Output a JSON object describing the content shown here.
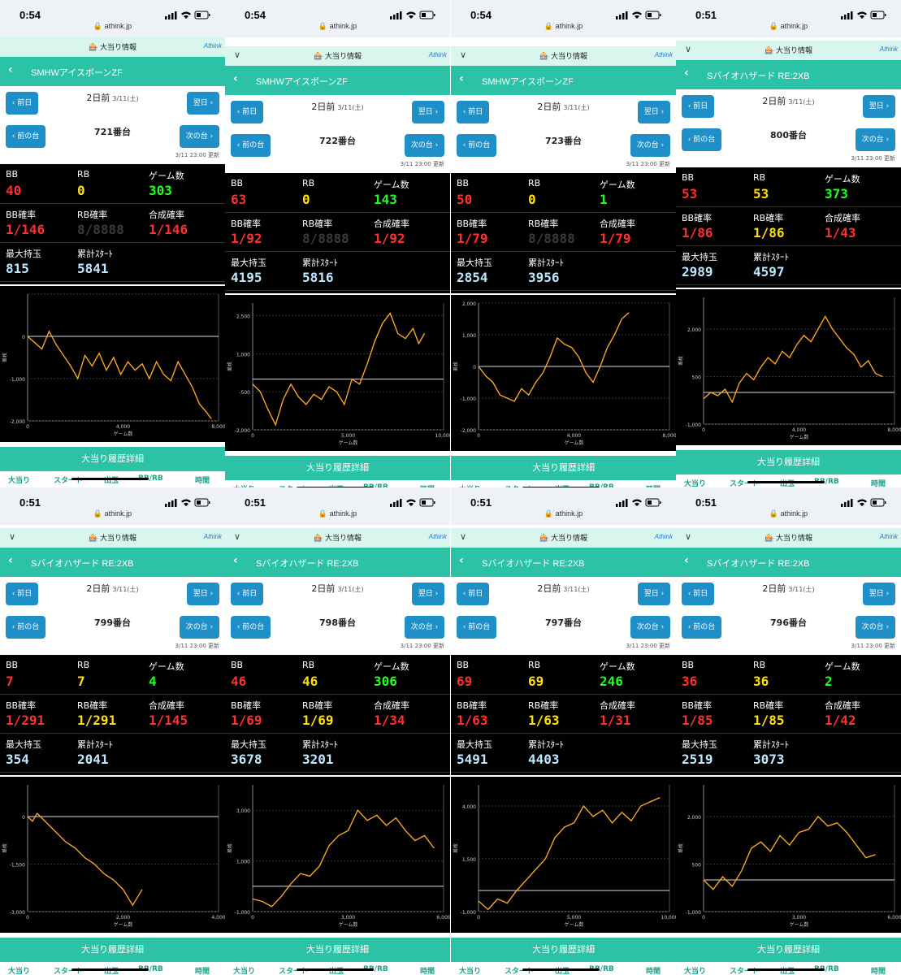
{
  "header": {
    "url": "athink.jp",
    "info_label": "大当り情報",
    "logo": "Athink",
    "prev_day": "‹ 前日",
    "next_day": "翌日 ›",
    "prev_machine": "‹ 前の台",
    "next_machine": "次の台 ›",
    "day_label": "2日前",
    "day_date": "3/11(土)",
    "updated": "3/11 23:00 更新",
    "history_label": "大当り履歴詳細"
  },
  "stat_labels": {
    "bb": "BB",
    "rb": "RB",
    "games": "ゲーム数",
    "bb_rate": "BB確率",
    "rb_rate": "RB確率",
    "combined_rate": "合成確率",
    "max_balls": "最大持玉",
    "total_starts": "累計ｽﾀｰﾄ"
  },
  "tabs": [
    "大当り",
    "スタート",
    "出玉",
    "BB/RB",
    "時間"
  ],
  "axis_labels": {
    "x": "ゲーム数",
    "y": "差枚"
  },
  "panels": [
    {
      "time": "0:54",
      "title": "SMHWアイスボーンZF",
      "machine": "721番台",
      "bb": "40",
      "rb": "0",
      "games": "303",
      "bb_rate": "1/146",
      "rb_rate": "8/8888",
      "combined_rate": "1/146",
      "max_balls": "815",
      "total_starts": "5841",
      "chart_data": {
        "type": "line",
        "xlim": [
          0,
          8000
        ],
        "ylim": [
          -2000,
          1000
        ],
        "xticks": [
          0,
          4000,
          8000
        ],
        "xtick_labels": [
          "0",
          "4,000",
          "8,000"
        ],
        "yticks": [
          -2000,
          -1000,
          0,
          1000
        ],
        "ytick_labels": [
          "-2,000",
          "-1,000",
          "0",
          ""
        ],
        "x": [
          0,
          300,
          600,
          900,
          1200,
          1500,
          1800,
          2100,
          2400,
          2700,
          3000,
          3300,
          3600,
          3900,
          4200,
          4500,
          4800,
          5100,
          5400,
          5700,
          6000,
          6300,
          6600,
          6900,
          7200,
          7500,
          7700
        ],
        "y": [
          0,
          -150,
          -300,
          120,
          -200,
          -450,
          -700,
          -1000,
          -450,
          -700,
          -400,
          -800,
          -500,
          -900,
          -600,
          -800,
          -650,
          -1000,
          -600,
          -900,
          -1050,
          -600,
          -900,
          -1200,
          -1600,
          -1800,
          -1950
        ]
      }
    },
    {
      "time": "0:54",
      "title": "SMHWアイスボーンZF",
      "machine": "722番台",
      "bb": "63",
      "rb": "0",
      "games": "143",
      "bb_rate": "1/92",
      "rb_rate": "8/8888",
      "combined_rate": "1/92",
      "max_balls": "4195",
      "total_starts": "5816",
      "chart_data": {
        "type": "line",
        "xlim": [
          0,
          10000
        ],
        "ylim": [
          -2000,
          3000
        ],
        "xticks": [
          0,
          5000,
          10000
        ],
        "xtick_labels": [
          "0",
          "5,000",
          "10,000"
        ],
        "yticks": [
          -2000,
          -500,
          1000,
          2500
        ],
        "ytick_labels": [
          "-2,000",
          "-500",
          "1,000",
          "2,500"
        ],
        "x": [
          0,
          400,
          800,
          1200,
          1600,
          2000,
          2400,
          2800,
          3200,
          3600,
          4000,
          4400,
          4800,
          5200,
          5600,
          6000,
          6400,
          6800,
          7200,
          7600,
          8000,
          8400,
          8700,
          9000
        ],
        "y": [
          -200,
          -500,
          -1200,
          -1800,
          -800,
          -200,
          -700,
          -1000,
          -600,
          -800,
          -300,
          -500,
          -1000,
          0,
          -200,
          600,
          1500,
          2200,
          2600,
          1800,
          1600,
          2000,
          1400,
          1800
        ]
      }
    },
    {
      "time": "0:54",
      "title": "SMHWアイスボーンZF",
      "machine": "723番台",
      "bb": "50",
      "rb": "0",
      "games": "1",
      "bb_rate": "1/79",
      "rb_rate": "8/8888",
      "combined_rate": "1/79",
      "max_balls": "2854",
      "total_starts": "3956",
      "chart_data": {
        "type": "line",
        "xlim": [
          0,
          8000
        ],
        "ylim": [
          -2000,
          2000
        ],
        "xticks": [
          0,
          4000,
          8000
        ],
        "xtick_labels": [
          "0",
          "4,000",
          "8,000"
        ],
        "yticks": [
          -2000,
          -1000,
          0,
          1000,
          2000
        ],
        "ytick_labels": [
          "-2,000",
          "-1,000",
          "0",
          "1,000",
          "2,000"
        ],
        "x": [
          0,
          300,
          600,
          900,
          1200,
          1500,
          1800,
          2100,
          2400,
          2700,
          3000,
          3300,
          3600,
          3900,
          4200,
          4500,
          4800,
          5100,
          5400,
          5700,
          6000,
          6300
        ],
        "y": [
          0,
          -300,
          -500,
          -900,
          -1000,
          -1100,
          -700,
          -900,
          -500,
          -200,
          300,
          900,
          700,
          600,
          300,
          -200,
          -500,
          0,
          600,
          1000,
          1500,
          1700
        ]
      }
    },
    {
      "time": "0:51",
      "title": "Sバイオハザード RE:2XB",
      "machine": "800番台",
      "bb": "53",
      "rb": "53",
      "games": "373",
      "bb_rate": "1/86",
      "rb_rate": "1/86",
      "combined_rate": "1/43",
      "max_balls": "2989",
      "total_starts": "4597",
      "chart_data": {
        "type": "line",
        "xlim": [
          0,
          8000
        ],
        "ylim": [
          -1000,
          3000
        ],
        "xticks": [
          0,
          4000,
          8000
        ],
        "xtick_labels": [
          "0",
          "4,000",
          "8,000"
        ],
        "yticks": [
          -1000,
          500,
          2000
        ],
        "ytick_labels": [
          "-1,000",
          "500",
          "2,000"
        ],
        "x": [
          0,
          300,
          600,
          900,
          1200,
          1500,
          1800,
          2100,
          2400,
          2700,
          3000,
          3300,
          3600,
          3900,
          4200,
          4500,
          4800,
          5100,
          5400,
          5700,
          6000,
          6300,
          6600,
          6900,
          7200,
          7500
        ],
        "y": [
          -200,
          0,
          -100,
          100,
          -300,
          300,
          600,
          400,
          800,
          1100,
          900,
          1300,
          1100,
          1500,
          1800,
          1600,
          2000,
          2400,
          2000,
          1700,
          1400,
          1200,
          800,
          1000,
          600,
          500
        ]
      }
    },
    {
      "time": "0:51",
      "title": "Sバイオハザード RE:2XB",
      "machine": "799番台",
      "bb": "7",
      "rb": "7",
      "games": "4",
      "bb_rate": "1/291",
      "rb_rate": "1/291",
      "combined_rate": "1/145",
      "max_balls": "354",
      "total_starts": "2041",
      "chart_data": {
        "type": "line",
        "xlim": [
          0,
          4000
        ],
        "ylim": [
          -3000,
          1000
        ],
        "xticks": [
          0,
          2000,
          4000
        ],
        "xtick_labels": [
          "0",
          "2,000",
          "4,000"
        ],
        "yticks": [
          -3000,
          -1500,
          0
        ],
        "ytick_labels": [
          "-3,000",
          "-1,500",
          "0"
        ],
        "x": [
          0,
          100,
          200,
          400,
          600,
          800,
          1000,
          1200,
          1400,
          1600,
          1800,
          2000,
          2200,
          2400
        ],
        "y": [
          0,
          -150,
          100,
          -200,
          -500,
          -800,
          -1000,
          -1300,
          -1500,
          -1800,
          -2000,
          -2300,
          -2800,
          -2300
        ]
      }
    },
    {
      "time": "0:51",
      "title": "Sバイオハザード RE:2XB",
      "machine": "798番台",
      "bb": "46",
      "rb": "46",
      "games": "306",
      "bb_rate": "1/69",
      "rb_rate": "1/69",
      "combined_rate": "1/34",
      "max_balls": "3678",
      "total_starts": "3201",
      "chart_data": {
        "type": "line",
        "xlim": [
          0,
          6000
        ],
        "ylim": [
          -1000,
          4000
        ],
        "xticks": [
          0,
          3000,
          6000
        ],
        "xtick_labels": [
          "0",
          "3,000",
          "6,000"
        ],
        "yticks": [
          -1000,
          1000,
          3000
        ],
        "ytick_labels": [
          "-1,000",
          "1,000",
          "3,000"
        ],
        "x": [
          0,
          300,
          600,
          900,
          1200,
          1500,
          1800,
          2100,
          2400,
          2700,
          3000,
          3300,
          3600,
          3900,
          4200,
          4500,
          4800,
          5100,
          5400,
          5700
        ],
        "y": [
          -500,
          -600,
          -800,
          -400,
          100,
          500,
          400,
          800,
          1600,
          2000,
          2200,
          3000,
          2600,
          2800,
          2400,
          2700,
          2200,
          1800,
          2000,
          1500
        ]
      }
    },
    {
      "time": "0:51",
      "title": "Sバイオハザード RE:2XB",
      "machine": "797番台",
      "bb": "69",
      "rb": "69",
      "games": "246",
      "bb_rate": "1/63",
      "rb_rate": "1/63",
      "combined_rate": "1/31",
      "max_balls": "5491",
      "total_starts": "4403",
      "chart_data": {
        "type": "line",
        "xlim": [
          0,
          10000
        ],
        "ylim": [
          -1000,
          5000
        ],
        "xticks": [
          0,
          5000,
          10000
        ],
        "xtick_labels": [
          "0",
          "5,000",
          "10,000"
        ],
        "yticks": [
          -1000,
          1500,
          4000
        ],
        "ytick_labels": [
          "-1,000",
          "1,500",
          "4,000"
        ],
        "x": [
          0,
          500,
          1000,
          1500,
          2000,
          2500,
          3000,
          3500,
          4000,
          4500,
          5000,
          5500,
          6000,
          6500,
          7000,
          7500,
          8000,
          8500,
          9000,
          9500
        ],
        "y": [
          -500,
          -900,
          -400,
          -600,
          0,
          500,
          1000,
          1500,
          2500,
          3000,
          3200,
          4000,
          3500,
          3800,
          3200,
          3700,
          3300,
          4000,
          4200,
          4400
        ]
      }
    },
    {
      "time": "0:51",
      "title": "Sバイオハザード RE:2XB",
      "machine": "796番台",
      "bb": "36",
      "rb": "36",
      "games": "2",
      "bb_rate": "1/85",
      "rb_rate": "1/85",
      "combined_rate": "1/42",
      "max_balls": "2519",
      "total_starts": "3073",
      "chart_data": {
        "type": "line",
        "xlim": [
          0,
          6000
        ],
        "ylim": [
          -1000,
          3000
        ],
        "xticks": [
          0,
          3000,
          6000
        ],
        "xtick_labels": [
          "0",
          "3,000",
          "6,000"
        ],
        "yticks": [
          -1000,
          500,
          2000
        ],
        "ytick_labels": [
          "-1,000",
          "500",
          "2,000"
        ],
        "x": [
          0,
          300,
          600,
          900,
          1200,
          1500,
          1800,
          2100,
          2400,
          2700,
          3000,
          3300,
          3600,
          3900,
          4200,
          4500,
          4800,
          5100,
          5400
        ],
        "y": [
          0,
          -300,
          100,
          -200,
          300,
          1000,
          1200,
          900,
          1400,
          1100,
          1500,
          1600,
          2000,
          1700,
          1800,
          1500,
          1100,
          700,
          800
        ]
      }
    }
  ]
}
